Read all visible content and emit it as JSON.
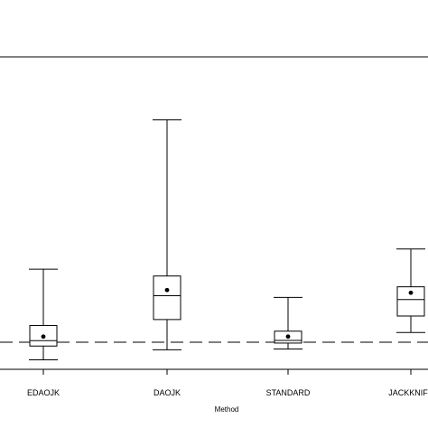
{
  "chart_data": {
    "type": "boxplot",
    "title": "",
    "xlabel": "Method",
    "ylabel": "",
    "categories": [
      "EDAOJK",
      "DAOJK",
      "STANDARD",
      "JACKKNIFE"
    ],
    "boxes": [
      {
        "category": "EDAOJK",
        "whisker_low": 0.35,
        "q1": 0.86,
        "median": 1.06,
        "q3": 1.62,
        "whisker_high": 3.7,
        "mean": 1.21
      },
      {
        "category": "DAOJK",
        "whisker_low": 0.72,
        "q1": 1.84,
        "median": 2.72,
        "q3": 3.45,
        "whisker_high": 9.22,
        "mean": 2.93
      },
      {
        "category": "STANDARD",
        "whisker_low": 0.75,
        "q1": 0.97,
        "median": 1.07,
        "q3": 1.41,
        "whisker_high": 2.66,
        "mean": 1.21
      },
      {
        "category": "JACKKNIFE",
        "whisker_low": 1.36,
        "q1": 1.97,
        "median": 2.58,
        "q3": 3.05,
        "whisker_high": 4.45,
        "mean": 2.83
      }
    ],
    "reference_line": {
      "value": 1.0,
      "style": "dashed"
    },
    "ylim": [
      0,
      11.55
    ],
    "grid": false,
    "legend": "none"
  }
}
